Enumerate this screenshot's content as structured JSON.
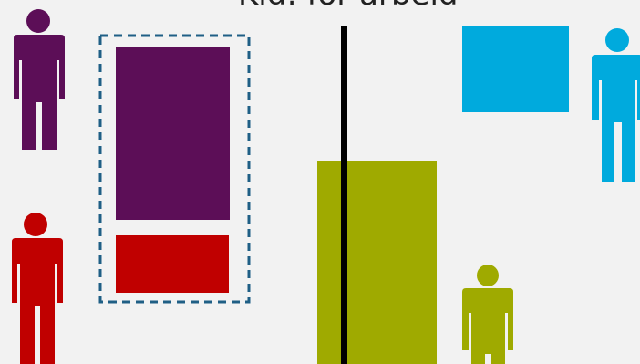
{
  "title": "Kid: for arbeid",
  "colors": {
    "background": "#f2f2f2",
    "purple": "#5c0e57",
    "red": "#c00000",
    "cyan": "#00aadd",
    "olive": "#9faa00",
    "divider": "#000000",
    "dashed_border": "#1f5f85"
  },
  "figures": [
    {
      "name": "person-purple-icon",
      "color": "purple"
    },
    {
      "name": "person-red-icon",
      "color": "red"
    },
    {
      "name": "person-cyan-icon",
      "color": "cyan"
    },
    {
      "name": "person-olive-icon",
      "color": "olive"
    }
  ],
  "blocks": [
    {
      "name": "purple-block",
      "color": "purple"
    },
    {
      "name": "red-block",
      "color": "red"
    },
    {
      "name": "cyan-block",
      "color": "cyan"
    },
    {
      "name": "olive-block",
      "color": "olive"
    }
  ]
}
